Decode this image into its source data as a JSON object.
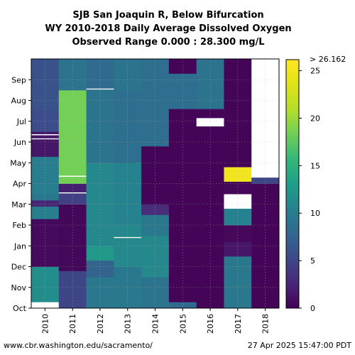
{
  "chart_data": {
    "type": "heatmap",
    "title_lines": [
      "SJB San Joaquin R, Below Bifurcation",
      "WY 2010-2018 Daily Average Dissolved Oxygen",
      "Observed Range 0.000 : 28.300 mg/L"
    ],
    "x_categories": [
      "2010",
      "2011",
      "2012",
      "2013",
      "2014",
      "2015",
      "2016",
      "2017",
      "2018"
    ],
    "y_month_ticks": [
      "Oct",
      "Nov",
      "Dec",
      "Jan",
      "Feb",
      "Mar",
      "Apr",
      "May",
      "Jun",
      "Jul",
      "Aug",
      "Sep"
    ],
    "colorbar": {
      "min": 0,
      "max": 26.162,
      "ticks": [
        0,
        5,
        10,
        15,
        20,
        25
      ],
      "top_label": "> 26.162",
      "colormap": "viridis"
    },
    "missing_color": "#ffffff",
    "grid": "dotted",
    "columns": [
      {
        "year": "2010",
        "segments": [
          {
            "m0": 0.0,
            "m1": 0.3,
            "value": null
          },
          {
            "m0": 0.3,
            "m1": 2.0,
            "value": 11.5
          },
          {
            "m0": 2.0,
            "m1": 4.3,
            "value": 0.6
          },
          {
            "m0": 4.3,
            "m1": 4.9,
            "value": 10.2
          },
          {
            "m0": 4.9,
            "m1": 5.2,
            "value": 2.5
          },
          {
            "m0": 5.2,
            "m1": 5.5,
            "value": 9.5
          },
          {
            "m0": 5.5,
            "m1": 7.3,
            "value": 10.0
          },
          {
            "m0": 7.3,
            "m1": 8.5,
            "value": 1.5
          },
          {
            "m0": 8.5,
            "m1": 9.5,
            "value": 5.5
          },
          {
            "m0": 9.5,
            "m1": 12.0,
            "value": 6.0
          }
        ]
      },
      {
        "year": "2011",
        "segments": [
          {
            "m0": 0.0,
            "m1": 1.8,
            "value": 5.0
          },
          {
            "m0": 1.8,
            "m1": 5.0,
            "value": 0.4
          },
          {
            "m0": 5.0,
            "m1": 5.6,
            "value": 4.5
          },
          {
            "m0": 5.6,
            "m1": 6.0,
            "value": 2.0
          },
          {
            "m0": 6.0,
            "m1": 10.5,
            "value": 18.5
          },
          {
            "m0": 10.5,
            "m1": 12.0,
            "value": 9.0
          }
        ]
      },
      {
        "year": "2012",
        "segments": [
          {
            "m0": 0.0,
            "m1": 1.5,
            "value": 9.5
          },
          {
            "m0": 1.5,
            "m1": 2.3,
            "value": 7.5
          },
          {
            "m0": 2.3,
            "m1": 3.0,
            "value": 12.5
          },
          {
            "m0": 3.0,
            "m1": 7.0,
            "value": 11.0
          },
          {
            "m0": 7.0,
            "m1": 10.5,
            "value": 9.0
          },
          {
            "m0": 10.5,
            "m1": 12.0,
            "value": 8.0
          }
        ]
      },
      {
        "year": "2013",
        "segments": [
          {
            "m0": 0.0,
            "m1": 2.0,
            "value": 9.5
          },
          {
            "m0": 2.0,
            "m1": 4.0,
            "value": 11.0
          },
          {
            "m0": 4.0,
            "m1": 7.0,
            "value": 10.5
          },
          {
            "m0": 7.0,
            "m1": 10.5,
            "value": 8.5
          },
          {
            "m0": 10.5,
            "m1": 12.0,
            "value": 9.0
          }
        ]
      },
      {
        "year": "2014",
        "segments": [
          {
            "m0": 0.0,
            "m1": 1.5,
            "value": 9.0
          },
          {
            "m0": 1.5,
            "m1": 3.5,
            "value": 11.0
          },
          {
            "m0": 3.5,
            "m1": 4.5,
            "value": 9.5
          },
          {
            "m0": 4.5,
            "m1": 5.0,
            "value": 3.0
          },
          {
            "m0": 5.0,
            "m1": 7.8,
            "value": 0.3
          },
          {
            "m0": 7.8,
            "m1": 12.0,
            "value": 8.5
          }
        ]
      },
      {
        "year": "2015",
        "segments": [
          {
            "m0": 0.0,
            "m1": 0.3,
            "value": 8.0
          },
          {
            "m0": 0.3,
            "m1": 9.6,
            "value": 0.2
          },
          {
            "m0": 9.6,
            "m1": 11.3,
            "value": 8.5
          },
          {
            "m0": 11.3,
            "m1": 12.0,
            "value": 0.3
          }
        ]
      },
      {
        "year": "2016",
        "segments": [
          {
            "m0": 0.0,
            "m1": 9.6,
            "value": 0.2
          },
          {
            "m0": 9.6,
            "m1": 12.0,
            "value": 9.0
          }
        ]
      },
      {
        "year": "2017",
        "segments": [
          {
            "m0": 0.0,
            "m1": 2.5,
            "value": 9.5
          },
          {
            "m0": 2.5,
            "m1": 3.2,
            "value": 1.5
          },
          {
            "m0": 3.2,
            "m1": 4.0,
            "value": 0.5
          },
          {
            "m0": 4.0,
            "m1": 4.8,
            "value": 10.5
          },
          {
            "m0": 4.8,
            "m1": 5.5,
            "value": null
          },
          {
            "m0": 5.5,
            "m1": 6.1,
            "value": 0.4
          },
          {
            "m0": 6.1,
            "m1": 6.8,
            "value": 25.0
          },
          {
            "m0": 6.8,
            "m1": 12.0,
            "value": 0.3
          }
        ]
      },
      {
        "year": "2018",
        "segments": [
          {
            "m0": 0.0,
            "m1": 6.0,
            "value": 0.3
          },
          {
            "m0": 6.0,
            "m1": 6.3,
            "value": 5.0
          },
          {
            "m0": 6.3,
            "m1": 12.0,
            "value": null
          }
        ]
      }
    ],
    "white_marks": [
      {
        "col": 0,
        "m": 8.15
      },
      {
        "col": 0,
        "m": 8.35
      },
      {
        "col": 1,
        "m": 5.55
      },
      {
        "col": 1,
        "m": 6.35
      },
      {
        "col": 2,
        "m": 10.55
      },
      {
        "col": 3,
        "m": 3.4
      }
    ],
    "white_blocks": [
      {
        "col": 6,
        "m0": 8.75,
        "m1": 9.15
      }
    ]
  },
  "footer": {
    "url": "www.cbr.washington.edu/sacramento/",
    "timestamp": "27 Apr 2025 15:47:00 PDT"
  }
}
